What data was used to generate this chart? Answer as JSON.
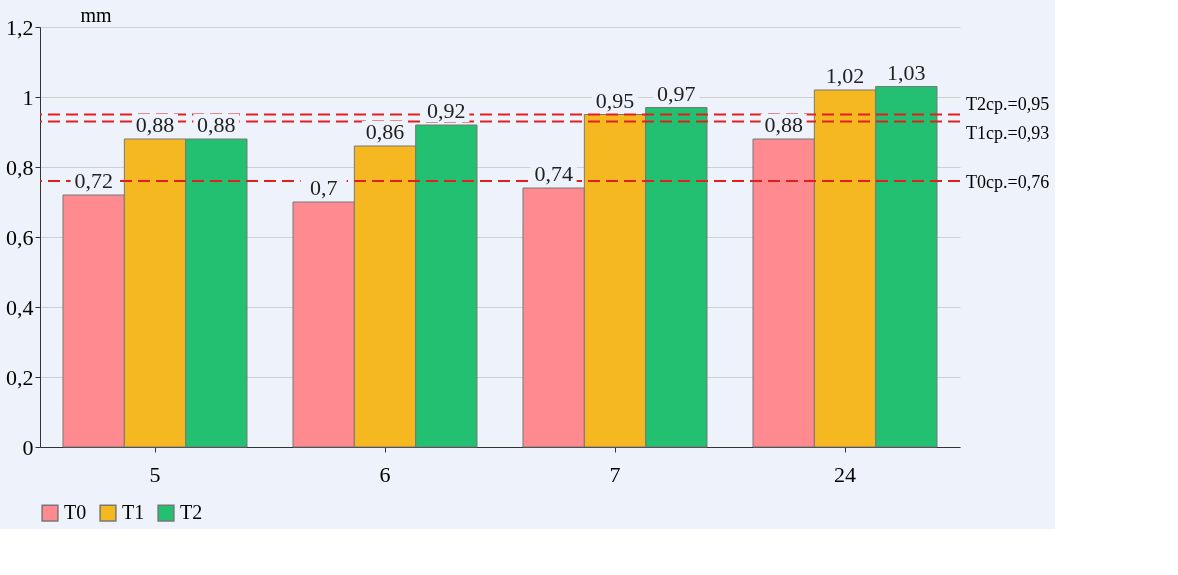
{
  "chart_data": {
    "type": "bar",
    "ylabel": "mm",
    "categories": [
      "5",
      "6",
      "7",
      "24"
    ],
    "series": [
      {
        "name": "T0",
        "color": "#ff8a8f",
        "values": [
          0.72,
          0.7,
          0.74,
          0.88
        ],
        "value_labels": [
          "0,72",
          "0,7",
          "0,74",
          "0,88"
        ]
      },
      {
        "name": "T1",
        "color": "#f5b820",
        "values": [
          0.88,
          0.86,
          0.95,
          1.02
        ],
        "value_labels": [
          "0,88",
          "0,86",
          "0,95",
          "1,02"
        ]
      },
      {
        "name": "T2",
        "color": "#22c070",
        "values": [
          0.88,
          0.92,
          0.97,
          1.03
        ],
        "value_labels": [
          "0,88",
          "0,92",
          "0,97",
          "1,03"
        ]
      }
    ],
    "ylim": [
      0,
      1.2
    ],
    "yticks": [
      0,
      {
        "value": 0.2,
        "label": "0,2"
      },
      {
        "value": 0.4,
        "label": "0,4"
      },
      {
        "value": 0.6,
        "label": "0,6"
      },
      {
        "value": 0.8,
        "label": "0,8"
      },
      1,
      {
        "value": 1.2,
        "label": "1,2"
      }
    ],
    "ref_lines": [
      {
        "axis": "y",
        "value": 0.76,
        "label": "T0ср.=0,76",
        "color": "#e02020",
        "line_style": "dashed"
      },
      {
        "axis": "y",
        "value": 0.93,
        "label": "T1ср.=0,93",
        "color": "#e02020",
        "line_style": "dashed"
      },
      {
        "axis": "y",
        "value": 0.95,
        "label": "T2ср.=0,95",
        "color": "#e02020",
        "line_style": "dashed"
      }
    ],
    "grid": "y",
    "legend": "bottom"
  }
}
